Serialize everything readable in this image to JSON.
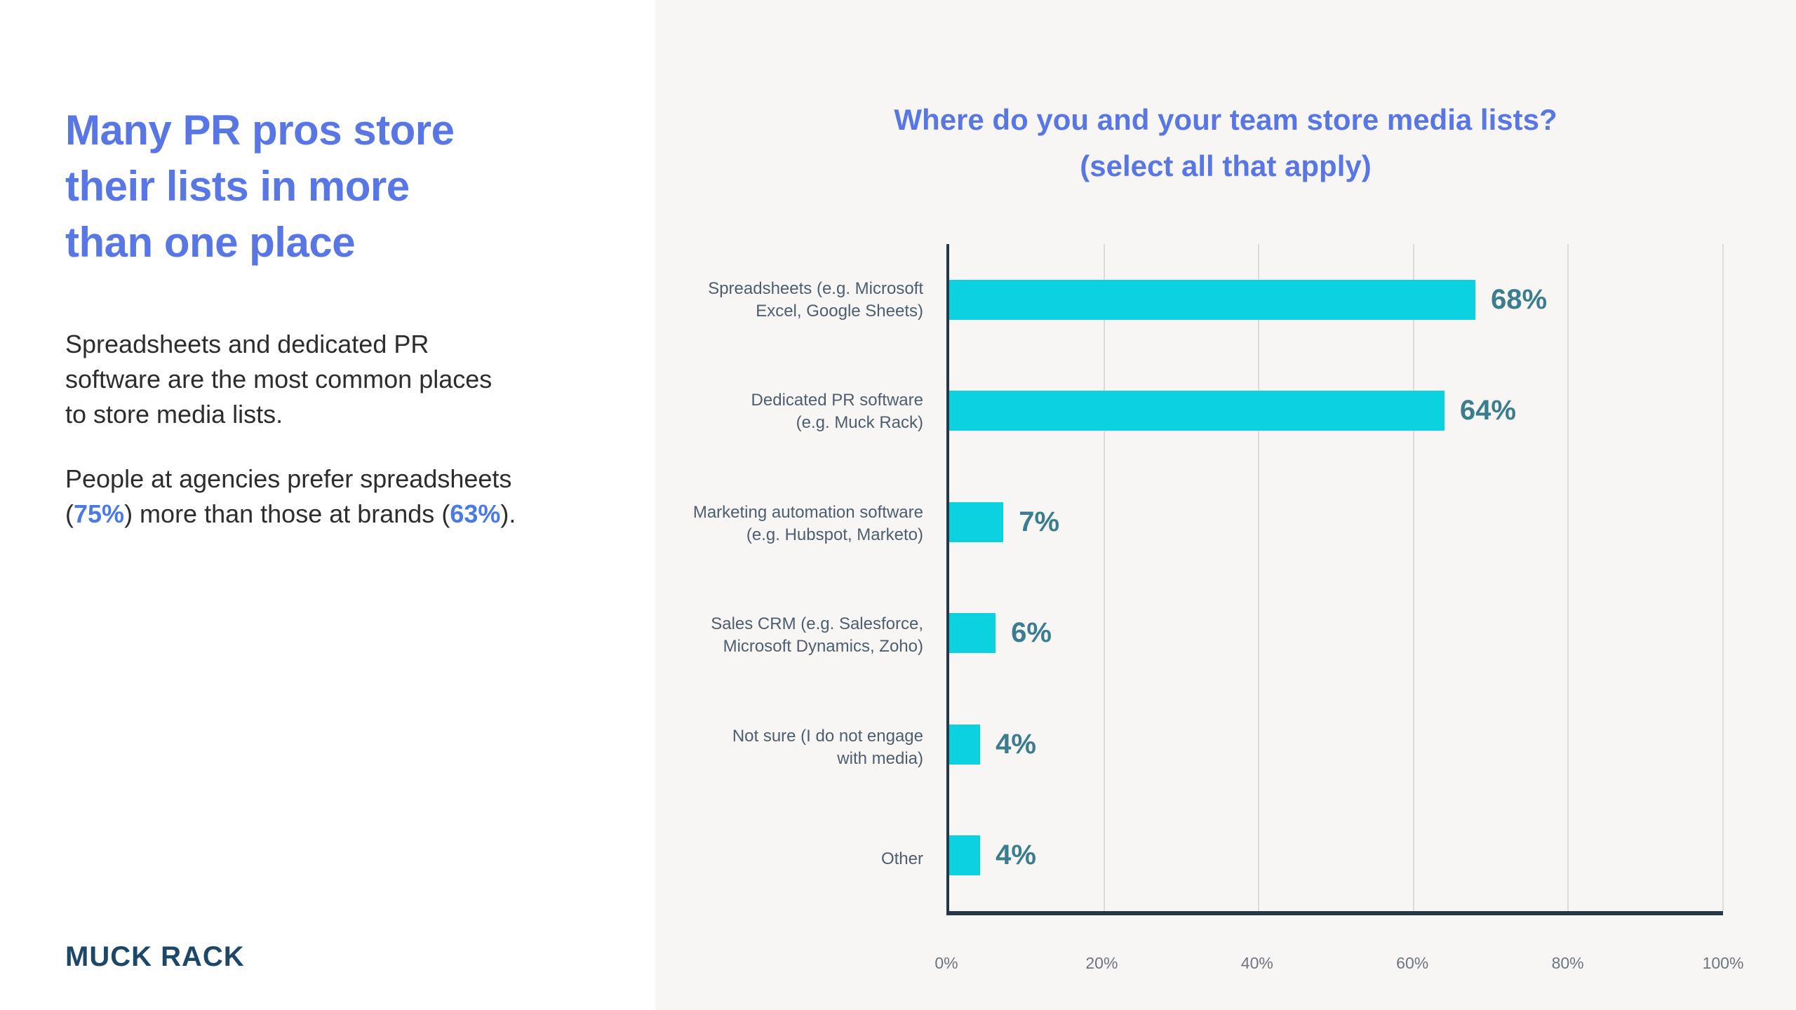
{
  "left_panel": {
    "heading_lines": [
      "Many PR pros store",
      "their lists in more",
      "than one place"
    ],
    "para1_lines": [
      "Spreadsheets and dedicated PR",
      "software are the most common places",
      "to store media lists."
    ],
    "para2_line1": "People at agencies prefer spreadsheets",
    "para2_line2": {
      "open": "(",
      "pct1": "75%",
      "mid": ") more than those at brands (",
      "pct2": "63%",
      "close": ")."
    },
    "logo_text": "MUCK RACK"
  },
  "chart_data": {
    "type": "bar",
    "orientation": "horizontal",
    "title": "Where do you and your team store media lists?",
    "subtitle": "(select all that apply)",
    "categories": [
      "Spreadsheets (e.g. Microsoft Excel, Google Sheets)",
      "Dedicated PR software (e.g. Muck Rack)",
      "Marketing automation software (e.g. Hubspot, Marketo)",
      "Sales CRM (e.g. Salesforce, Microsoft Dynamics, Zoho)",
      "Not sure (I do not engage with media)",
      "Other"
    ],
    "values": [
      68,
      64,
      7,
      6,
      4,
      4
    ],
    "bars": [
      {
        "label_lines": [
          "Spreadsheets (e.g. Microsoft",
          "Excel, Google Sheets)"
        ],
        "value": 68,
        "value_label": "68%"
      },
      {
        "label_lines": [
          "Dedicated PR software",
          "(e.g. Muck Rack)"
        ],
        "value": 64,
        "value_label": "64%"
      },
      {
        "label_lines": [
          "Marketing automation software",
          "(e.g. Hubspot, Marketo)"
        ],
        "value": 7,
        "value_label": "7%"
      },
      {
        "label_lines": [
          "Sales CRM (e.g. Salesforce,",
          "Microsoft Dynamics, Zoho)"
        ],
        "value": 6,
        "value_label": "6%"
      },
      {
        "label_lines": [
          "Not sure (I do not engage",
          "with media)"
        ],
        "value": 4,
        "value_label": "4%"
      },
      {
        "label_lines": [
          "Other"
        ],
        "value": 4,
        "value_label": "4%"
      }
    ],
    "x_ticks": [
      "0%",
      "20%",
      "40%",
      "60%",
      "80%",
      "100%"
    ],
    "xlim": [
      0,
      100
    ],
    "grid": true,
    "legend_position": "none"
  },
  "colors": {
    "bar_cyan": "#0bd2de",
    "title_blue": "#5877e4",
    "inline_pct_blue": "#4a7ae8",
    "value_label_teal": "#3a7d8e",
    "axis_navy": "#26374a",
    "category_label_slate": "#4d5e6f",
    "tick_gray": "#6d7580",
    "logo_navy": "#1d4769",
    "right_panel_bg": "#f8f6f4",
    "body_text": "#2d2d2d"
  }
}
